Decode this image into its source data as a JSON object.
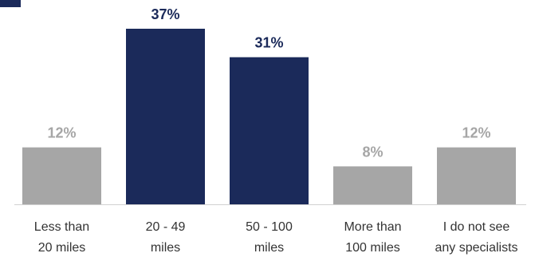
{
  "chart_data": {
    "type": "bar",
    "categories": [
      [
        "Less than",
        "20 miles"
      ],
      [
        "20 - 49",
        "miles"
      ],
      [
        "50 - 100",
        "miles"
      ],
      [
        "More than",
        "100 miles"
      ],
      [
        "I do not see",
        "any specialists"
      ]
    ],
    "values": [
      12,
      37,
      31,
      8,
      12
    ],
    "value_labels": [
      "12%",
      "37%",
      "31%",
      "8%",
      "12%"
    ],
    "bar_colors": [
      "#a6a6a6",
      "#1b2a5a",
      "#1b2a5a",
      "#a6a6a6",
      "#a6a6a6"
    ],
    "label_colors": [
      "#a6a6a6",
      "#1b2a5a",
      "#1b2a5a",
      "#a6a6a6",
      "#a6a6a6"
    ],
    "ylim": [
      0,
      37
    ],
    "grid": false,
    "legend": "none",
    "title": "",
    "xlabel": "",
    "ylabel": ""
  }
}
